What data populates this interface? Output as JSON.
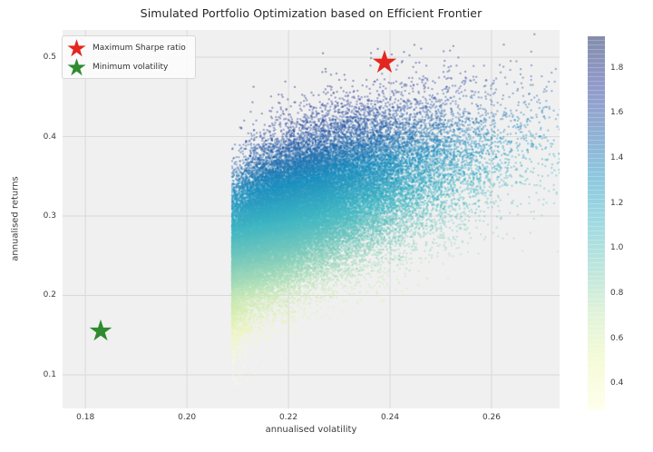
{
  "title": "Simulated Portfolio Optimization based on Efficient Frontier",
  "chart_data": {
    "type": "scatter",
    "title": "Simulated Portfolio Optimization based on Efficient Frontier",
    "xlabel": "annualised volatility",
    "ylabel": "annualised returns",
    "xlim": [
      0.1755,
      0.2734
    ],
    "ylim": [
      0.0577,
      0.5343
    ],
    "xticks": {
      "values": [
        0.18,
        0.2,
        0.22,
        0.24,
        0.26
      ],
      "labels": [
        "0.18",
        "0.20",
        "0.22",
        "0.24",
        "0.26"
      ]
    },
    "yticks": {
      "values": [
        0.1,
        0.2,
        0.3,
        0.4,
        0.5
      ],
      "labels": [
        "0.1",
        "0.2",
        "0.3",
        "0.4",
        "0.5"
      ]
    },
    "grid": true,
    "plot_background": "#f0f0f0",
    "gridline_color": "#d9d9d9",
    "figure_background": "#ffffff",
    "colorbar": {
      "vmin": 0.28,
      "vmax": 1.94,
      "ticks": {
        "values": [
          0.4,
          0.6,
          0.8,
          1.0,
          1.2,
          1.4,
          1.6,
          1.8
        ],
        "labels": [
          "0.4",
          "0.6",
          "0.8",
          "1.0",
          "1.2",
          "1.4",
          "1.6",
          "1.8"
        ]
      },
      "colormap": "YlGnBu",
      "alpha": 0.5
    },
    "colormap_stops": [
      {
        "t": 0.0,
        "color": "#ffffd9"
      },
      {
        "t": 0.125,
        "color": "#edf8b1"
      },
      {
        "t": 0.25,
        "color": "#c7e9b4"
      },
      {
        "t": 0.375,
        "color": "#7fcdbb"
      },
      {
        "t": 0.5,
        "color": "#41b6c4"
      },
      {
        "t": 0.625,
        "color": "#1d91c0"
      },
      {
        "t": 0.75,
        "color": "#225ea8"
      },
      {
        "t": 0.875,
        "color": "#253494"
      },
      {
        "t": 1.0,
        "color": "#081d58"
      }
    ],
    "cloud": {
      "description": "Monte Carlo simulated random portfolios colored by Sharpe ratio",
      "n_points": 45000,
      "mean": [
        0.2245,
        0.305
      ],
      "std": [
        0.0115,
        0.058
      ],
      "corr": 0.58,
      "x_skew": 0.22,
      "sharpe_risk_free": 0.05,
      "point_alpha": 0.35,
      "point_radius": 1.25,
      "seed": 42
    },
    "markers": [
      {
        "id": "max-sharpe",
        "label": "Maximum Sharpe ratio",
        "x": 0.239,
        "y": 0.494,
        "color": "#e3261f",
        "marker": "star",
        "size": 29
      },
      {
        "id": "min-volatility",
        "label": "Minimum volatility",
        "x": 0.183,
        "y": 0.156,
        "color": "#2e8b2e",
        "marker": "star",
        "size": 27
      }
    ],
    "legend": {
      "position": "upper left",
      "entries": [
        {
          "label": "Maximum Sharpe ratio",
          "color": "#e3261f",
          "marker": "star"
        },
        {
          "label": "Minimum volatility",
          "color": "#2e8b2e",
          "marker": "star"
        }
      ]
    }
  }
}
